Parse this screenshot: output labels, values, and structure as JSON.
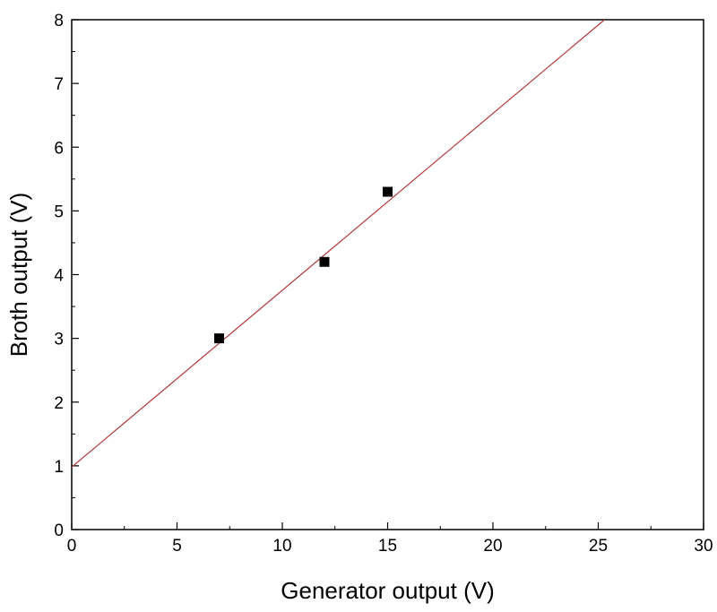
{
  "chart_data": {
    "type": "scatter",
    "title": "",
    "xlabel": "Generator output (V)",
    "ylabel": "Broth output (V)",
    "xlim": [
      0,
      30
    ],
    "ylim": [
      0,
      8
    ],
    "xticks": [
      0,
      5,
      10,
      15,
      20,
      25,
      30
    ],
    "yticks": [
      0,
      1,
      2,
      3,
      4,
      5,
      6,
      7,
      8
    ],
    "xtick_labels": [
      "0",
      "5",
      "10",
      "15",
      "20",
      "25",
      "30"
    ],
    "ytick_labels": [
      "0",
      "1",
      "2",
      "3",
      "4",
      "5",
      "6",
      "7",
      "8"
    ],
    "grid": false,
    "legend": "none",
    "series": [
      {
        "kind": "points",
        "marker": "square",
        "color": "#000000",
        "x": [
          7,
          12,
          15
        ],
        "y": [
          3.0,
          4.2,
          5.3
        ]
      },
      {
        "kind": "fit-line",
        "color": "#b03a3a",
        "x": [
          0,
          25.3
        ],
        "y": [
          0.98,
          8.0
        ]
      }
    ]
  }
}
